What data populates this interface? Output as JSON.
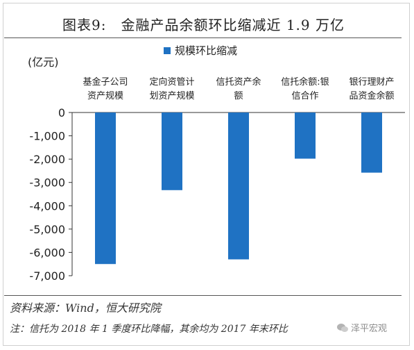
{
  "title": "图表9:　金融产品余额环比缩减近 1.9 万亿",
  "unit": "(亿元)",
  "source": "资料来源：Wind，恒大研究院",
  "note": "注：信托为 2018 年 1 季度环比降幅，其余均为 2017 年末环比",
  "watermark": "泽平宏观",
  "colors": {
    "bar": "#1f72c3",
    "axis": "#333333"
  },
  "chart_data": {
    "type": "bar",
    "categories": [
      [
        "基金子公司",
        "资产规模"
      ],
      [
        "定向资管计",
        "划资产规模"
      ],
      [
        "信托资产余",
        "额"
      ],
      [
        "信托余额:银",
        "信合作"
      ],
      [
        "银行理财产",
        "品资金余额"
      ]
    ],
    "series": [
      {
        "name": "规模环比缩减",
        "values": [
          -6500,
          -3330,
          -6300,
          -1980,
          -2580
        ]
      }
    ],
    "ylim": [
      -7000,
      0
    ],
    "yticks": [
      0,
      -1000,
      -2000,
      -3000,
      -4000,
      -5000,
      -6000,
      -7000
    ],
    "ytick_labels": [
      "0",
      "-1,000",
      "-2,000",
      "-3,000",
      "-4,000",
      "-5,000",
      "-6,000",
      "-7,000"
    ],
    "ylabel": "(亿元)",
    "legend_position": "top-center",
    "grid": false
  }
}
